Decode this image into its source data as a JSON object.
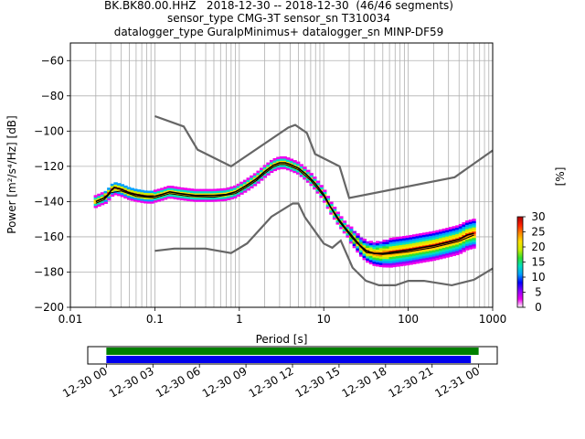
{
  "header": {
    "line1": "BK.BK80.00.HHZ   2018-12-30 -- 2018-12-30  (46/46 segments)",
    "line2": "sensor_type CMG-3T sensor_sn T310034",
    "line3": "datalogger_type GuralpMinimus+ datalogger_sn MINP-DF59"
  },
  "chart_data": [
    {
      "type": "line",
      "subtype": "probabilistic-power-spectral-density",
      "xlabel": "Period [s]",
      "ylabel": "Power [m²/s⁴/Hz] [dB]",
      "x_scale": "log",
      "xlim": [
        0.01,
        1000
      ],
      "ylim": [
        -200,
        -50
      ],
      "x_ticks": [
        0.01,
        0.1,
        1,
        10,
        100,
        1000
      ],
      "x_tick_labels": [
        "0.01",
        "0.1",
        "1",
        "10",
        "100",
        "1000"
      ],
      "y_ticks": [
        -200,
        -180,
        -160,
        -140,
        -120,
        -100,
        -80,
        -60
      ],
      "y_tick_labels": [
        "−200",
        "−180",
        "−160",
        "−140",
        "−120",
        "−100",
        "−80",
        "−60"
      ],
      "grid": true,
      "series": [
        {
          "role": "noise-model-upper",
          "color": "#666666",
          "points": [
            [
              0.1,
              -91.5
            ],
            [
              0.22,
              -97.4
            ],
            [
              0.32,
              -110.5
            ],
            [
              0.8,
              -120
            ],
            [
              3.8,
              -98
            ],
            [
              4.6,
              -96.5
            ],
            [
              6.3,
              -101
            ],
            [
              7.9,
              -113
            ],
            [
              15.4,
              -120
            ],
            [
              20,
              -138
            ],
            [
              354.8,
              -126.2
            ],
            [
              1000,
              -111
            ]
          ]
        },
        {
          "role": "noise-model-lower",
          "color": "#666666",
          "points": [
            [
              0.1,
              -168
            ],
            [
              0.17,
              -166.7
            ],
            [
              0.4,
              -166.7
            ],
            [
              0.8,
              -169.2
            ],
            [
              1.24,
              -163.7
            ],
            [
              2.4,
              -148.6
            ],
            [
              4.3,
              -141.1
            ],
            [
              5.0,
              -141.1
            ],
            [
              6.0,
              -149
            ],
            [
              10.0,
              -163.8
            ],
            [
              12.6,
              -166.2
            ],
            [
              15.9,
              -162.1
            ],
            [
              21.9,
              -177.5
            ],
            [
              31.6,
              -185
            ],
            [
              45.0,
              -187.5
            ],
            [
              70.8,
              -187.5
            ],
            [
              100,
              -185
            ],
            [
              154,
              -185
            ],
            [
              328,
              -187.5
            ],
            [
              600,
              -184.4
            ],
            [
              1000,
              -178
            ]
          ]
        },
        {
          "role": "mean-psd",
          "color": "#000000",
          "points": [
            [
              0.02,
              -140
            ],
            [
              0.025,
              -138
            ],
            [
              0.028,
              -136
            ],
            [
              0.03,
              -134
            ],
            [
              0.033,
              -132
            ],
            [
              0.04,
              -133
            ],
            [
              0.05,
              -135
            ],
            [
              0.06,
              -136
            ],
            [
              0.08,
              -137
            ],
            [
              0.1,
              -137
            ],
            [
              0.12,
              -136
            ],
            [
              0.15,
              -134.5
            ],
            [
              0.2,
              -135.5
            ],
            [
              0.3,
              -136.5
            ],
            [
              0.5,
              -136.5
            ],
            [
              0.7,
              -136
            ],
            [
              0.9,
              -134.5
            ],
            [
              1.2,
              -131
            ],
            [
              1.6,
              -127
            ],
            [
              2,
              -123
            ],
            [
              2.5,
              -119.5
            ],
            [
              3,
              -118
            ],
            [
              3.5,
              -118
            ],
            [
              4,
              -119
            ],
            [
              5,
              -121
            ],
            [
              6,
              -124
            ],
            [
              7,
              -127
            ],
            [
              8,
              -130
            ],
            [
              10,
              -136
            ],
            [
              12,
              -143
            ],
            [
              15,
              -150
            ],
            [
              18,
              -155
            ],
            [
              22,
              -160
            ],
            [
              27,
              -165
            ],
            [
              32,
              -168
            ],
            [
              40,
              -169.5
            ],
            [
              50,
              -169.5
            ],
            [
              70,
              -168.5
            ],
            [
              100,
              -167.5
            ],
            [
              150,
              -166
            ],
            [
              200,
              -165
            ],
            [
              300,
              -163
            ],
            [
              400,
              -161.5
            ],
            [
              500,
              -159
            ],
            [
              600,
              -158
            ]
          ]
        },
        {
          "role": "mode-psd",
          "color": "#000000",
          "points": [
            [
              0.02,
              -141
            ],
            [
              0.025,
              -139
            ],
            [
              0.03,
              -135
            ],
            [
              0.04,
              -134
            ],
            [
              0.06,
              -137
            ],
            [
              0.1,
              -138
            ],
            [
              0.15,
              -135.5
            ],
            [
              0.25,
              -137
            ],
            [
              0.5,
              -137.5
            ],
            [
              0.9,
              -135.5
            ],
            [
              1.2,
              -132
            ],
            [
              1.6,
              -128
            ],
            [
              2,
              -124
            ],
            [
              2.5,
              -120.5
            ],
            [
              3,
              -119
            ],
            [
              3.5,
              -119
            ],
            [
              4,
              -120
            ],
            [
              5,
              -122
            ],
            [
              7,
              -128
            ],
            [
              10,
              -137
            ],
            [
              15,
              -151
            ],
            [
              22,
              -161
            ],
            [
              32,
              -169
            ],
            [
              50,
              -170
            ],
            [
              100,
              -168.5
            ],
            [
              200,
              -166
            ],
            [
              400,
              -162.5
            ],
            [
              600,
              -159
            ]
          ]
        }
      ],
      "colorbar": {
        "label": "[%]",
        "min": 0,
        "max": 30,
        "ticks": [
          0,
          5,
          10,
          15,
          20,
          25,
          30
        ],
        "colors": [
          "#ffffff",
          "#ee00ee",
          "#8a00ff",
          "#0000ff",
          "#00a0ff",
          "#00e0c0",
          "#30e030",
          "#ccee00",
          "#ffe000",
          "#ff8800",
          "#ff2000",
          "#aa0000"
        ]
      }
    },
    {
      "type": "timeline",
      "tick_labels": [
        "12-30 00",
        "12-30 03",
        "12-30 06",
        "12-30 09",
        "12-30 12",
        "12-30 15",
        "12-30 18",
        "12-30 21",
        "12-31 00"
      ],
      "tick_hours": [
        0,
        3,
        6,
        9,
        12,
        15,
        18,
        21,
        24
      ],
      "xlim_hours": [
        -1.2,
        25.2
      ],
      "bars": [
        {
          "role": "data-available",
          "color": "#008000",
          "start_hour": 0,
          "end_hour": 24.0
        },
        {
          "role": "segments-used",
          "color": "#0000ee",
          "start_hour": 0,
          "end_hour": 23.5
        }
      ]
    }
  ]
}
